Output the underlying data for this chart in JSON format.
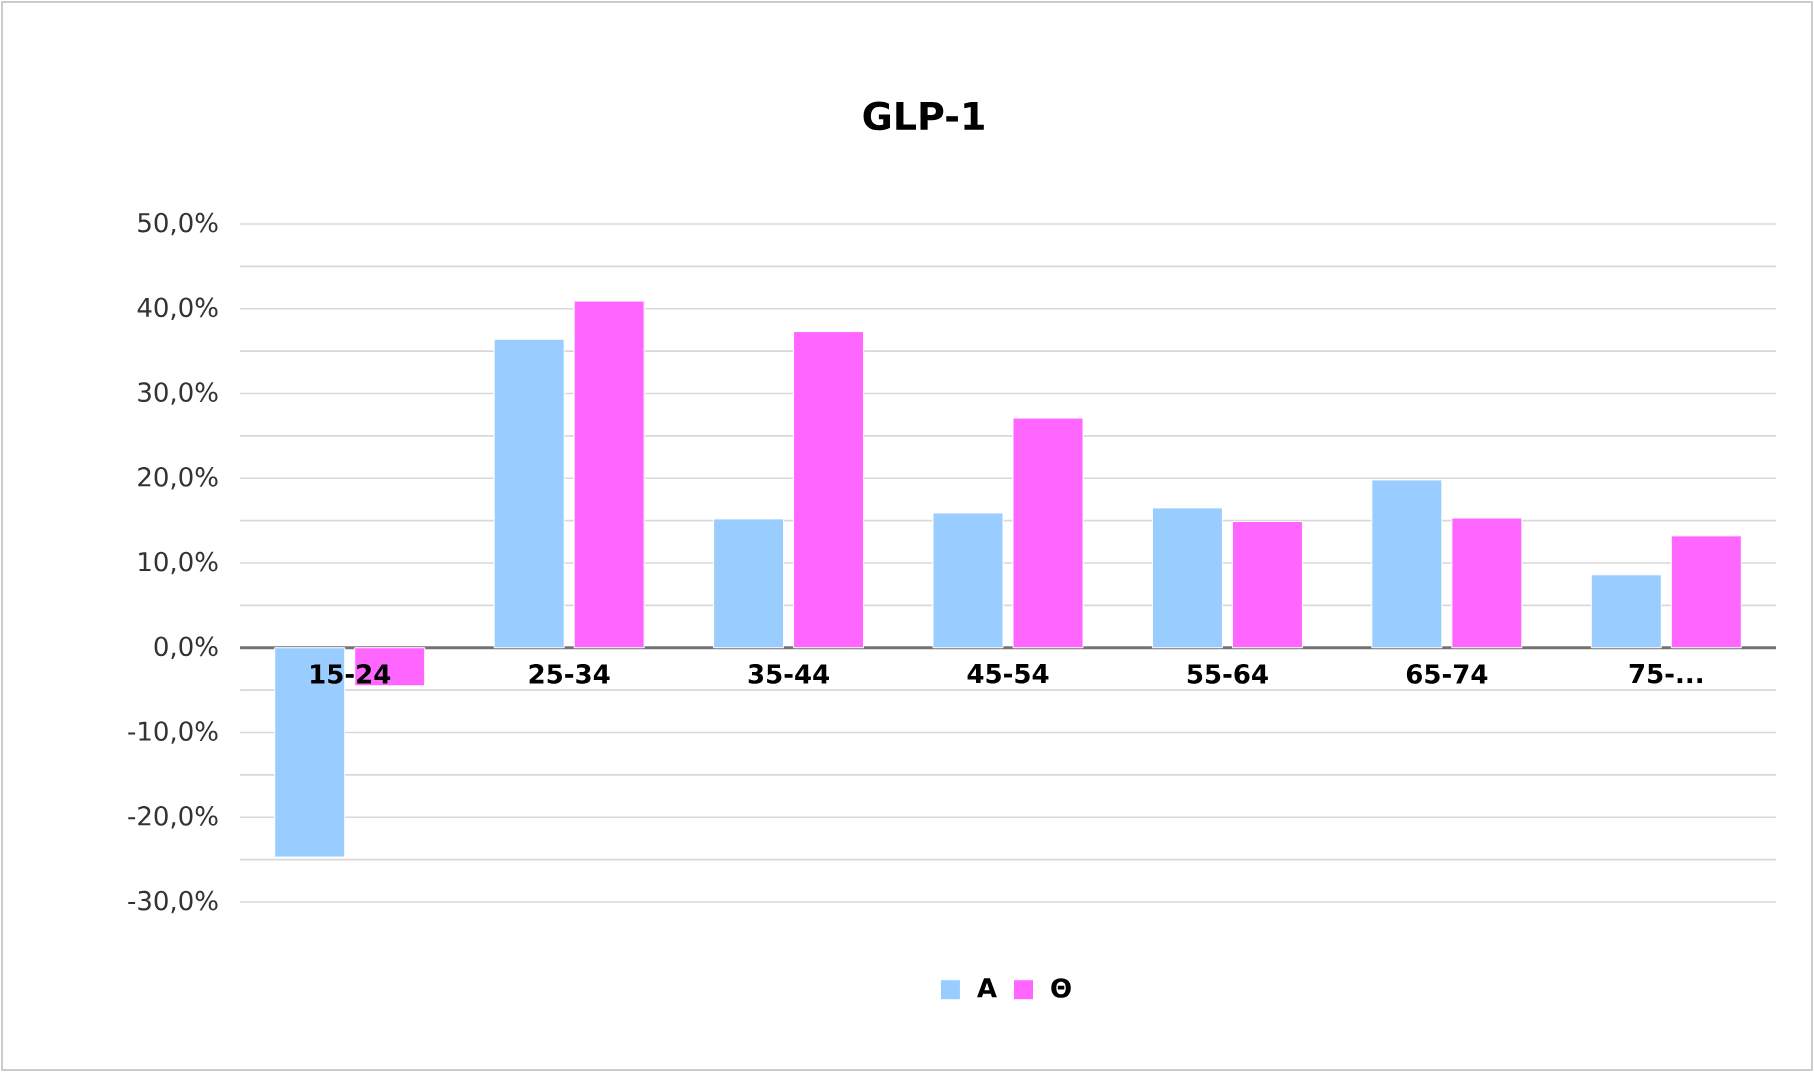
{
  "chart_data": {
    "type": "bar",
    "title": "GLP-1",
    "categories": [
      "15-24",
      "25-34",
      "35-44",
      "45-54",
      "55-64",
      "65-74",
      "75-..."
    ],
    "series": [
      {
        "name": "Α",
        "color": "#99ccff",
        "values": [
          -24.7,
          36.4,
          15.2,
          15.9,
          16.5,
          19.8,
          8.6
        ]
      },
      {
        "name": "Θ",
        "color": "#ff66ff",
        "values": [
          -4.5,
          40.9,
          37.3,
          27.1,
          14.9,
          15.3,
          13.2
        ]
      }
    ],
    "ylim": [
      -30,
      50
    ],
    "yticks": [
      {
        "value": -30,
        "label": "-30,0%"
      },
      {
        "value": -25,
        "label": null
      },
      {
        "value": -20,
        "label": "-20,0%"
      },
      {
        "value": -15,
        "label": null
      },
      {
        "value": -10,
        "label": "-10,0%"
      },
      {
        "value": -5,
        "label": null
      },
      {
        "value": 0,
        "label": "0,0%"
      },
      {
        "value": 5,
        "label": null
      },
      {
        "value": 10,
        "label": "10,0%"
      },
      {
        "value": 15,
        "label": null
      },
      {
        "value": 20,
        "label": "20,0%"
      },
      {
        "value": 25,
        "label": null
      },
      {
        "value": 30,
        "label": "30,0%"
      },
      {
        "value": 35,
        "label": null
      },
      {
        "value": 40,
        "label": "40,0%"
      },
      {
        "value": 45,
        "label": null
      },
      {
        "value": 50,
        "label": "50,0%"
      }
    ],
    "grid": "y",
    "legend": "bottom"
  }
}
